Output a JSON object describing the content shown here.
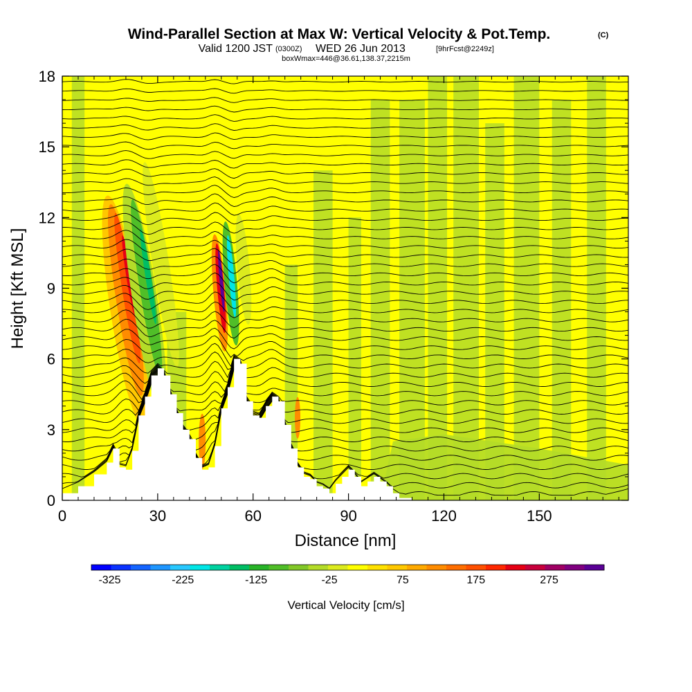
{
  "title": {
    "main": "Wind-Parallel Section at Max W: Vertical Velocity & Pot.Temp.",
    "copyright": "(C)",
    "line2_a": "Valid 1200 JST",
    "line2_b": "(0300Z)",
    "line2_c": "WED 26 Jun 2013",
    "line2_d": "[9hrFcst@2249z]",
    "line3": "boxWmax=446@36.61,138.37,2215m"
  },
  "chart_data": {
    "type": "heatmap",
    "xlabel": "Distance [nm]",
    "ylabel": "Height [Kft MSL]",
    "xlim": [
      0,
      178
    ],
    "ylim": [
      0,
      18
    ],
    "xticks": [
      0,
      30,
      60,
      90,
      120,
      150
    ],
    "yticks": [
      0,
      3,
      6,
      9,
      12,
      15,
      18
    ],
    "colorbar": {
      "label": "Vertical Velocity [cm/s]",
      "tick_labels": [
        "-325",
        "-225",
        "-125",
        "-25",
        "75",
        "175",
        "275"
      ],
      "min": -350,
      "max": 350,
      "step": 25,
      "colors": [
        "#0000ff",
        "#0a32ff",
        "#1464ff",
        "#1e96ff",
        "#28c8ff",
        "#00e6e6",
        "#00d2a0",
        "#00be64",
        "#28b428",
        "#50be28",
        "#82c828",
        "#b4dc28",
        "#dceb1e",
        "#ffff00",
        "#ffe100",
        "#ffc800",
        "#ffaa00",
        "#ff8c00",
        "#ff6e00",
        "#ff5000",
        "#ff2800",
        "#e60014",
        "#c8003c",
        "#a00064",
        "#800080",
        "#5a0096"
      ]
    },
    "terrain_profile": {
      "x": [
        0,
        5,
        10,
        14,
        16,
        18,
        20,
        22,
        24,
        26,
        28,
        30,
        32,
        34,
        36,
        38,
        40,
        42,
        44,
        46,
        48,
        50,
        52,
        54,
        56,
        58,
        60,
        62,
        64,
        66,
        68,
        70,
        72,
        74,
        76,
        78,
        80,
        82,
        84,
        86,
        88,
        90,
        92,
        94,
        96,
        98,
        100,
        102,
        104,
        106,
        110,
        115,
        120,
        130,
        140,
        150,
        160,
        170,
        178
      ],
      "y": [
        0.3,
        0.6,
        1.1,
        1.6,
        2.2,
        1.4,
        1.3,
        2.1,
        3.6,
        4.4,
        5.3,
        5.6,
        5.3,
        4.5,
        3.7,
        3.0,
        2.6,
        1.8,
        1.3,
        1.4,
        2.3,
        3.9,
        4.8,
        6.0,
        5.8,
        4.2,
        3.6,
        3.5,
        4.0,
        4.4,
        4.2,
        3.2,
        2.2,
        1.4,
        1.0,
        0.9,
        0.6,
        0.5,
        0.3,
        0.7,
        1.0,
        1.3,
        1.0,
        0.6,
        0.8,
        1.0,
        0.8,
        0.6,
        0.3,
        0.1,
        0.0,
        0.0,
        0.0,
        0.0,
        0.0,
        0.0,
        0.0,
        0.0,
        0.3
      ]
    },
    "features": [
      {
        "kind": "updraft",
        "x_center": 20,
        "y_bottom": 3,
        "y_top": 13,
        "peak": 150
      },
      {
        "kind": "downdraft",
        "x_center": 27,
        "y_bottom": 3,
        "y_top": 13,
        "peak": -100
      },
      {
        "kind": "updraft",
        "x_center": 50,
        "y_bottom": 5,
        "y_top": 11,
        "peak": 275
      },
      {
        "kind": "downdraft",
        "x_center": 53,
        "y_bottom": 6,
        "y_top": 11,
        "peak": -250
      }
    ],
    "theta_contour_count": 46
  }
}
